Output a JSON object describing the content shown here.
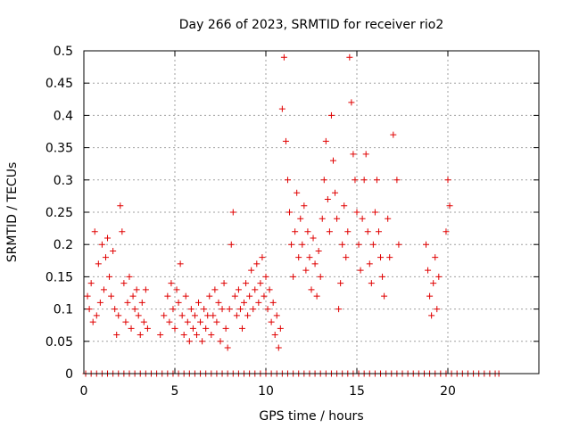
{
  "chart_data": {
    "type": "scatter",
    "title": "Day 266 of 2023, SRMTID for receiver rio2",
    "xlabel": "GPS time / hours",
    "ylabel": "SRMTID / TECUs",
    "xlim": [
      0,
      25
    ],
    "ylim": [
      0,
      0.5
    ],
    "xticks": [
      0,
      5,
      10,
      15,
      20
    ],
    "xtick_labels": [
      "0",
      "5",
      "10",
      "15",
      "20"
    ],
    "yticks": [
      0,
      0.05,
      0.1,
      0.15,
      0.2,
      0.25,
      0.3,
      0.35,
      0.4,
      0.45,
      0.5
    ],
    "ytick_labels": [
      "0",
      "0.05",
      "0.1",
      "0.15",
      "0.2",
      "0.25",
      "0.3",
      "0.35",
      "0.4",
      "0.45",
      "0.5"
    ],
    "grid": true,
    "legend": "none",
    "marker": "plus",
    "color": "#e00000",
    "series": [
      {
        "values": [
          [
            0.2,
            0.12
          ],
          [
            0.3,
            0.1
          ],
          [
            0.4,
            0.14
          ],
          [
            0.5,
            0.08
          ],
          [
            0.6,
            0.22
          ],
          [
            0.7,
            0.09
          ],
          [
            0.8,
            0.17
          ],
          [
            0.9,
            0.11
          ],
          [
            1.0,
            0.2
          ],
          [
            1.1,
            0.13
          ],
          [
            1.2,
            0.18
          ],
          [
            1.3,
            0.21
          ],
          [
            1.4,
            0.15
          ],
          [
            1.5,
            0.12
          ],
          [
            1.6,
            0.19
          ],
          [
            1.7,
            0.1
          ],
          [
            1.8,
            0.06
          ],
          [
            1.9,
            0.09
          ],
          [
            2.0,
            0.26
          ],
          [
            2.1,
            0.22
          ],
          [
            2.2,
            0.14
          ],
          [
            2.3,
            0.08
          ],
          [
            2.4,
            0.11
          ],
          [
            2.5,
            0.15
          ],
          [
            2.6,
            0.07
          ],
          [
            2.7,
            0.12
          ],
          [
            2.8,
            0.1
          ],
          [
            2.9,
            0.13
          ],
          [
            3.0,
            0.09
          ],
          [
            3.1,
            0.06
          ],
          [
            3.2,
            0.11
          ],
          [
            3.3,
            0.08
          ],
          [
            3.4,
            0.13
          ],
          [
            3.5,
            0.07
          ],
          [
            4.2,
            0.06
          ],
          [
            4.4,
            0.09
          ],
          [
            4.6,
            0.12
          ],
          [
            4.7,
            0.08
          ],
          [
            4.8,
            0.14
          ],
          [
            4.9,
            0.1
          ],
          [
            5.0,
            0.07
          ],
          [
            5.1,
            0.13
          ],
          [
            5.2,
            0.11
          ],
          [
            5.3,
            0.17
          ],
          [
            5.4,
            0.09
          ],
          [
            5.5,
            0.06
          ],
          [
            5.6,
            0.12
          ],
          [
            5.7,
            0.08
          ],
          [
            5.8,
            0.05
          ],
          [
            5.9,
            0.1
          ],
          [
            6.0,
            0.07
          ],
          [
            6.1,
            0.09
          ],
          [
            6.2,
            0.06
          ],
          [
            6.3,
            0.11
          ],
          [
            6.4,
            0.08
          ],
          [
            6.5,
            0.05
          ],
          [
            6.6,
            0.1
          ],
          [
            6.7,
            0.07
          ],
          [
            6.8,
            0.09
          ],
          [
            6.9,
            0.12
          ],
          [
            7.0,
            0.06
          ],
          [
            7.1,
            0.09
          ],
          [
            7.2,
            0.13
          ],
          [
            7.3,
            0.08
          ],
          [
            7.4,
            0.11
          ],
          [
            7.5,
            0.05
          ],
          [
            7.6,
            0.1
          ],
          [
            7.7,
            0.14
          ],
          [
            7.8,
            0.07
          ],
          [
            7.9,
            0.04
          ],
          [
            8.0,
            0.1
          ],
          [
            8.1,
            0.2
          ],
          [
            8.2,
            0.25
          ],
          [
            8.3,
            0.12
          ],
          [
            8.4,
            0.09
          ],
          [
            8.5,
            0.13
          ],
          [
            8.6,
            0.1
          ],
          [
            8.7,
            0.07
          ],
          [
            8.8,
            0.11
          ],
          [
            8.9,
            0.14
          ],
          [
            9.0,
            0.09
          ],
          [
            9.1,
            0.12
          ],
          [
            9.2,
            0.16
          ],
          [
            9.3,
            0.1
          ],
          [
            9.4,
            0.13
          ],
          [
            9.5,
            0.17
          ],
          [
            9.6,
            0.11
          ],
          [
            9.7,
            0.14
          ],
          [
            9.8,
            0.18
          ],
          [
            9.9,
            0.12
          ],
          [
            10.0,
            0.15
          ],
          [
            10.1,
            0.1
          ],
          [
            10.2,
            0.13
          ],
          [
            10.3,
            0.08
          ],
          [
            10.4,
            0.11
          ],
          [
            10.5,
            0.06
          ],
          [
            10.6,
            0.09
          ],
          [
            10.7,
            0.04
          ],
          [
            10.8,
            0.07
          ],
          [
            10.9,
            0.41
          ],
          [
            11.0,
            0.49
          ],
          [
            11.1,
            0.36
          ],
          [
            11.2,
            0.3
          ],
          [
            11.3,
            0.25
          ],
          [
            11.4,
            0.2
          ],
          [
            11.5,
            0.15
          ],
          [
            11.6,
            0.22
          ],
          [
            11.7,
            0.28
          ],
          [
            11.8,
            0.18
          ],
          [
            11.9,
            0.24
          ],
          [
            12.0,
            0.2
          ],
          [
            12.1,
            0.26
          ],
          [
            12.2,
            0.16
          ],
          [
            12.3,
            0.22
          ],
          [
            12.4,
            0.18
          ],
          [
            12.5,
            0.13
          ],
          [
            12.6,
            0.21
          ],
          [
            12.7,
            0.17
          ],
          [
            12.8,
            0.12
          ],
          [
            12.9,
            0.19
          ],
          [
            13.0,
            0.15
          ],
          [
            13.1,
            0.24
          ],
          [
            13.2,
            0.3
          ],
          [
            13.3,
            0.36
          ],
          [
            13.4,
            0.27
          ],
          [
            13.5,
            0.22
          ],
          [
            13.6,
            0.4
          ],
          [
            13.7,
            0.33
          ],
          [
            13.8,
            0.28
          ],
          [
            13.9,
            0.24
          ],
          [
            14.0,
            0.1
          ],
          [
            14.1,
            0.14
          ],
          [
            14.2,
            0.2
          ],
          [
            14.3,
            0.26
          ],
          [
            14.4,
            0.18
          ],
          [
            14.5,
            0.22
          ],
          [
            14.6,
            0.49
          ],
          [
            14.7,
            0.42
          ],
          [
            14.8,
            0.34
          ],
          [
            14.9,
            0.3
          ],
          [
            15.0,
            0.25
          ],
          [
            15.1,
            0.2
          ],
          [
            15.2,
            0.16
          ],
          [
            15.3,
            0.24
          ],
          [
            15.4,
            0.3
          ],
          [
            15.5,
            0.34
          ],
          [
            15.6,
            0.22
          ],
          [
            15.7,
            0.17
          ],
          [
            15.8,
            0.14
          ],
          [
            15.9,
            0.2
          ],
          [
            16.0,
            0.25
          ],
          [
            16.1,
            0.3
          ],
          [
            16.2,
            0.22
          ],
          [
            16.3,
            0.18
          ],
          [
            16.4,
            0.15
          ],
          [
            16.5,
            0.12
          ],
          [
            16.7,
            0.24
          ],
          [
            16.8,
            0.18
          ],
          [
            17.0,
            0.37
          ],
          [
            17.2,
            0.3
          ],
          [
            17.3,
            0.2
          ],
          [
            18.8,
            0.2
          ],
          [
            18.9,
            0.16
          ],
          [
            19.0,
            0.12
          ],
          [
            19.1,
            0.09
          ],
          [
            19.2,
            0.14
          ],
          [
            19.3,
            0.18
          ],
          [
            19.4,
            0.1
          ],
          [
            19.5,
            0.15
          ],
          [
            19.9,
            0.22
          ],
          [
            20.0,
            0.3
          ],
          [
            20.1,
            0.26
          ]
        ]
      },
      {
        "values": [
          [
            0.1,
            0
          ],
          [
            0.4,
            0
          ],
          [
            0.7,
            0
          ],
          [
            1.0,
            0
          ],
          [
            1.3,
            0
          ],
          [
            1.6,
            0
          ],
          [
            1.9,
            0
          ],
          [
            2.2,
            0
          ],
          [
            2.5,
            0
          ],
          [
            2.8,
            0
          ],
          [
            3.1,
            0
          ],
          [
            3.4,
            0
          ],
          [
            3.7,
            0
          ],
          [
            4.0,
            0
          ],
          [
            4.3,
            0
          ],
          [
            4.6,
            0
          ],
          [
            4.9,
            0
          ],
          [
            5.2,
            0
          ],
          [
            5.5,
            0
          ],
          [
            5.8,
            0
          ],
          [
            6.1,
            0
          ],
          [
            6.4,
            0
          ],
          [
            6.7,
            0
          ],
          [
            7.0,
            0
          ],
          [
            7.3,
            0
          ],
          [
            7.6,
            0
          ],
          [
            7.9,
            0
          ],
          [
            8.2,
            0
          ],
          [
            8.5,
            0
          ],
          [
            8.8,
            0
          ],
          [
            9.1,
            0
          ],
          [
            9.4,
            0
          ],
          [
            9.7,
            0
          ],
          [
            10.0,
            0
          ],
          [
            10.3,
            0
          ],
          [
            10.6,
            0
          ],
          [
            10.9,
            0
          ],
          [
            11.2,
            0
          ],
          [
            11.5,
            0
          ],
          [
            11.8,
            0
          ],
          [
            12.1,
            0
          ],
          [
            12.4,
            0
          ],
          [
            12.7,
            0
          ],
          [
            13.0,
            0
          ],
          [
            13.3,
            0
          ],
          [
            13.6,
            0
          ],
          [
            13.9,
            0
          ],
          [
            14.2,
            0
          ],
          [
            14.5,
            0
          ],
          [
            14.8,
            0
          ],
          [
            15.1,
            0
          ],
          [
            15.4,
            0
          ],
          [
            15.7,
            0
          ],
          [
            16.0,
            0
          ],
          [
            16.3,
            0
          ],
          [
            16.6,
            0
          ],
          [
            16.9,
            0
          ],
          [
            17.2,
            0
          ],
          [
            17.5,
            0
          ],
          [
            17.8,
            0
          ],
          [
            18.1,
            0
          ],
          [
            18.4,
            0
          ],
          [
            18.7,
            0
          ],
          [
            19.0,
            0
          ],
          [
            19.3,
            0
          ],
          [
            19.6,
            0
          ],
          [
            19.9,
            0
          ],
          [
            20.2,
            0
          ],
          [
            20.5,
            0
          ],
          [
            20.8,
            0
          ],
          [
            21.1,
            0
          ],
          [
            21.4,
            0
          ],
          [
            21.7,
            0
          ],
          [
            22.0,
            0
          ],
          [
            22.3,
            0
          ],
          [
            22.6,
            0
          ],
          [
            22.8,
            0
          ]
        ]
      }
    ]
  }
}
